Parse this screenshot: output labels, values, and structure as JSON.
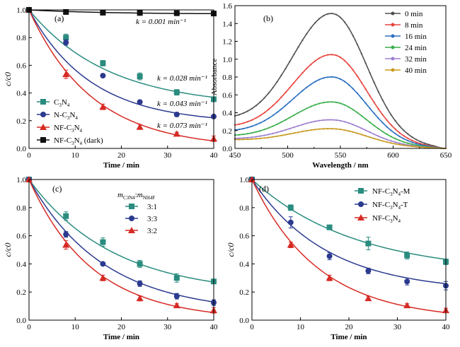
{
  "colors": {
    "teal": "#2a8c7f",
    "navy": "#2b3a8f",
    "red": "#d62b24",
    "black": "#111111",
    "gray": "#505050",
    "bred": "#e8423b",
    "blue": "#2a6fc0",
    "green": "#3aae4a",
    "purple": "#9d7fd0",
    "gold": "#c99a1f"
  },
  "chart_data": [
    {
      "panel": "(a)",
      "type": "scatter",
      "xlabel": "Time / min",
      "ylabel": "c/c0",
      "xlim": [
        0,
        40
      ],
      "ylim": [
        0,
        1.0
      ],
      "xticks": [
        "0",
        "10",
        "20",
        "30",
        "40"
      ],
      "yticks": [
        "0.0",
        "0.2",
        "0.4",
        "0.6",
        "0.8",
        "1.0"
      ],
      "series": [
        {
          "name": "C3N4",
          "label_main": "C",
          "label_sub1": "3",
          "label_mid": "N",
          "label_sub2": "4",
          "label_suffix": "",
          "marker": "square",
          "color": "#2a8c7f",
          "x": [
            0,
            8,
            16,
            24,
            32,
            40
          ],
          "y": [
            1.0,
            0.8,
            0.615,
            0.52,
            0.405,
            0.355
          ],
          "err": [
            0,
            0.025,
            0.02,
            0.025,
            0.02,
            0.01
          ],
          "fit": {
            "type": "exp",
            "a": 0.7,
            "k": 0.058,
            "c": 0.3
          }
        },
        {
          "name": "N-C3N4",
          "label_main": "N-C",
          "label_sub1": "3",
          "label_mid": "N",
          "label_sub2": "4",
          "label_suffix": "",
          "marker": "circle",
          "color": "#2b3a8f",
          "x": [
            0,
            8,
            16,
            24,
            32,
            40
          ],
          "y": [
            1.0,
            0.765,
            0.525,
            0.335,
            0.245,
            0.23
          ],
          "err": [
            0,
            0.02,
            0.01,
            0.012,
            0.015,
            0.01
          ],
          "fit": {
            "type": "exp",
            "a": 0.82,
            "k": 0.075,
            "c": 0.18
          }
        },
        {
          "name": "NF-C3N4",
          "label_main": "NF-C",
          "label_sub1": "3",
          "label_mid": "N",
          "label_sub2": "4",
          "label_suffix": "",
          "marker": "triangle",
          "color": "#d62b24",
          "x": [
            0,
            8,
            16,
            24,
            32,
            40
          ],
          "y": [
            1.0,
            0.535,
            0.3,
            0.155,
            0.105,
            0.07
          ],
          "err": [
            0,
            0.03,
            0.02,
            0.018,
            0.012,
            0.02
          ],
          "fit": {
            "type": "exp",
            "a": 1.0,
            "k": 0.073,
            "c": 0.0
          }
        },
        {
          "name": "NF-C3N4 (dark)",
          "label_main": "NF-C",
          "label_sub1": "3",
          "label_mid": "N",
          "label_sub2": "4",
          "label_suffix": " (dark)",
          "marker": "square",
          "color": "#111111",
          "x": [
            0,
            8,
            16,
            24,
            32,
            40
          ],
          "y": [
            1.0,
            0.985,
            0.98,
            0.978,
            0.976,
            0.974
          ],
          "err": [
            0,
            0,
            0,
            0,
            0,
            0
          ],
          "fit": {
            "type": "exp",
            "a": 0.03,
            "k": 0.06,
            "c": 0.97
          }
        }
      ],
      "annotations": [
        "k = 0.001 min⁻¹",
        "k = 0.028 min⁻¹",
        "k = 0.043 min⁻¹",
        "k = 0.073 min⁻¹"
      ]
    },
    {
      "panel": "(b)",
      "type": "line",
      "xlabel": "Wavelength / nm",
      "ylabel": "Absorbance",
      "xlim": [
        450,
        650
      ],
      "ylim": [
        0,
        1.6
      ],
      "xticks": [
        "450",
        "500",
        "550",
        "600",
        "650"
      ],
      "yticks": [
        "0.0",
        "0.2",
        "0.4",
        "0.6",
        "0.8",
        "1.0",
        "1.2",
        "1.4",
        "1.6"
      ],
      "series": [
        {
          "name": "0 min",
          "color": "#505050",
          "peak": 1.51,
          "base": 0.33
        },
        {
          "name": "8 min",
          "color": "#e8423b",
          "peak": 1.05,
          "base": 0.24
        },
        {
          "name": "16 min",
          "color": "#2a6fc0",
          "peak": 0.8,
          "base": 0.19
        },
        {
          "name": "24 min",
          "color": "#3aae4a",
          "peak": 0.52,
          "base": 0.14
        },
        {
          "name": "32 min",
          "color": "#9d7fd0",
          "peak": 0.32,
          "base": 0.11
        },
        {
          "name": "40 min",
          "color": "#c99a1f",
          "peak": 0.22,
          "base": 0.1
        }
      ]
    },
    {
      "panel": "(c)",
      "type": "scatter",
      "xlabel": "Time / min",
      "ylabel": "c/c0",
      "xlim": [
        0,
        40
      ],
      "ylim": [
        0,
        1.0
      ],
      "xticks": [
        "0",
        "10",
        "20",
        "30",
        "40"
      ],
      "yticks": [
        "0.0",
        "0.2",
        "0.4",
        "0.6",
        "0.8",
        "1.0"
      ],
      "legend_title_m1": "m",
      "legend_title_sub1": "C3N4",
      "legend_title_colon": ":",
      "legend_title_m2": "m",
      "legend_title_sub2": "NH4F",
      "series": [
        {
          "name": "3:1",
          "marker": "square",
          "color": "#2a8c7f",
          "x": [
            0,
            8,
            16,
            24,
            32,
            40
          ],
          "y": [
            1.0,
            0.74,
            0.555,
            0.4,
            0.3,
            0.275
          ],
          "err": [
            0,
            0.03,
            0.03,
            0.025,
            0.03,
            0.01
          ],
          "fit": {
            "type": "exp",
            "a": 0.82,
            "k": 0.055,
            "c": 0.18
          }
        },
        {
          "name": "3:3",
          "marker": "circle",
          "color": "#2b3a8f",
          "x": [
            0,
            8,
            16,
            24,
            32,
            40
          ],
          "y": [
            1.0,
            0.61,
            0.4,
            0.26,
            0.17,
            0.125
          ],
          "err": [
            0,
            0.02,
            0.01,
            0.02,
            0.02,
            0.02
          ],
          "fit": {
            "type": "exp",
            "a": 0.95,
            "k": 0.062,
            "c": 0.05
          }
        },
        {
          "name": "3:2",
          "marker": "triangle",
          "color": "#d62b24",
          "x": [
            0,
            8,
            16,
            24,
            32,
            40
          ],
          "y": [
            1.0,
            0.535,
            0.3,
            0.155,
            0.105,
            0.07
          ],
          "err": [
            0,
            0.03,
            0.02,
            0.018,
            0.012,
            0.02
          ],
          "fit": {
            "type": "exp",
            "a": 1.0,
            "k": 0.073,
            "c": 0.0
          }
        }
      ]
    },
    {
      "panel": "(d)",
      "type": "scatter",
      "xlabel": "Time / min",
      "ylabel": "c/c0",
      "xlim": [
        0,
        40
      ],
      "ylim": [
        0,
        1.0
      ],
      "xticks": [
        "0",
        "10",
        "20",
        "30",
        "40"
      ],
      "yticks": [
        "0.0",
        "0.2",
        "0.4",
        "0.6",
        "0.8",
        "1.0"
      ],
      "series": [
        {
          "name": "NF-C3N4-M",
          "label_main": "NF-C",
          "label_sub1": "3",
          "label_mid": "N",
          "label_sub2": "4",
          "label_suffix": "-M",
          "marker": "square",
          "color": "#2a8c7f",
          "x": [
            0,
            8,
            16,
            24,
            32,
            40
          ],
          "y": [
            1.0,
            0.8,
            0.66,
            0.545,
            0.46,
            0.415
          ],
          "err": [
            0,
            0.02,
            0.015,
            0.045,
            0.025,
            0.02
          ],
          "fit": {
            "type": "exp",
            "a": 0.67,
            "k": 0.047,
            "c": 0.33
          }
        },
        {
          "name": "NF-C3N4-T",
          "label_main": "NF-C",
          "label_sub1": "3",
          "label_mid": "N",
          "label_sub2": "4",
          "label_suffix": "-T",
          "marker": "circle",
          "color": "#2b3a8f",
          "x": [
            0,
            8,
            16,
            24,
            32,
            40
          ],
          "y": [
            1.0,
            0.695,
            0.455,
            0.35,
            0.275,
            0.245
          ],
          "err": [
            0,
            0.04,
            0.025,
            0.02,
            0.025,
            0.03
          ],
          "fit": {
            "type": "exp",
            "a": 0.8,
            "k": 0.065,
            "c": 0.2
          }
        },
        {
          "name": "NF-C3N4",
          "label_main": "NF-C",
          "label_sub1": "3",
          "label_mid": "N",
          "label_sub2": "4",
          "label_suffix": "",
          "marker": "triangle",
          "color": "#d62b24",
          "x": [
            0,
            8,
            16,
            24,
            32,
            40
          ],
          "y": [
            1.0,
            0.535,
            0.3,
            0.155,
            0.105,
            0.07
          ],
          "err": [
            0,
            0.02,
            0.02,
            0.015,
            0.012,
            0.015
          ],
          "fit": {
            "type": "exp",
            "a": 1.0,
            "k": 0.073,
            "c": 0.0
          }
        }
      ]
    }
  ]
}
